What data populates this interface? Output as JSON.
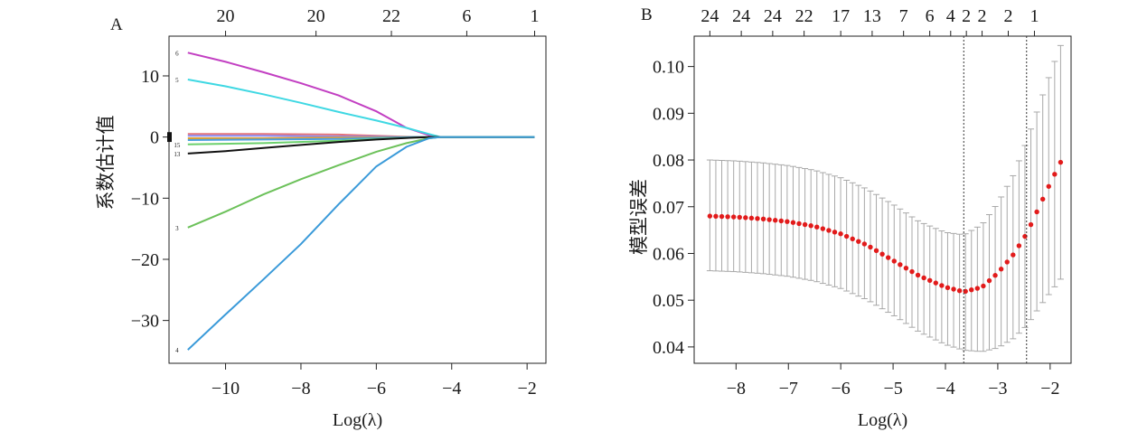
{
  "chart_data": [
    {
      "panel": "A",
      "type": "line",
      "xlabel": "Log(λ)",
      "ylabel": "系数估计值",
      "xlim": [
        -11.5,
        -1.5
      ],
      "ylim": [
        -37,
        16.5
      ],
      "xticks": [
        -10,
        -8,
        -6,
        -4,
        -2
      ],
      "xtick_labels": [
        "−10",
        "−8",
        "−6",
        "−4",
        "−2"
      ],
      "yticks": [
        10,
        0,
        -10,
        -20,
        -30
      ],
      "ytick_labels": [
        "10",
        "0",
        "−10",
        "−20",
        "−30"
      ],
      "top_axis": {
        "positions": [
          -10.0,
          -7.6,
          -5.6,
          -3.6,
          -1.8
        ],
        "labels": [
          "20",
          "20",
          "22",
          "6",
          "1"
        ]
      },
      "series": [
        {
          "color": "#c23fc2",
          "end_label": "6",
          "values": [
            [
              -11,
              13.8
            ],
            [
              -10,
              12.3
            ],
            [
              -9,
              10.6
            ],
            [
              -8,
              8.8
            ],
            [
              -7,
              6.8
            ],
            [
              -6,
              4.2
            ],
            [
              -5.2,
              1.5
            ],
            [
              -4.6,
              0.3
            ],
            [
              -4.3,
              0
            ],
            [
              -1.8,
              0
            ]
          ]
        },
        {
          "color": "#3fd8e3",
          "end_label": "5",
          "values": [
            [
              -11,
              9.4
            ],
            [
              -10,
              8.3
            ],
            [
              -9,
              7.0
            ],
            [
              -8,
              5.6
            ],
            [
              -7,
              4.1
            ],
            [
              -6,
              2.7
            ],
            [
              -5.2,
              1.5
            ],
            [
              -4.6,
              0.5
            ],
            [
              -4.3,
              0
            ],
            [
              -1.8,
              0
            ]
          ]
        },
        {
          "color": "#e3737a",
          "end_label": "",
          "values": [
            [
              -11,
              0.5
            ],
            [
              -9,
              0.5
            ],
            [
              -7,
              0.4
            ],
            [
              -6,
              0.2
            ],
            [
              -5,
              0
            ],
            [
              -1.8,
              0
            ]
          ]
        },
        {
          "color": "#8a8af0",
          "end_label": "",
          "values": [
            [
              -11,
              0.2
            ],
            [
              -9,
              0.2
            ],
            [
              -7,
              0.1
            ],
            [
              -5,
              0
            ],
            [
              -1.8,
              0
            ]
          ]
        },
        {
          "color": "#e0a030",
          "end_label": "",
          "values": [
            [
              -11,
              -0.2
            ],
            [
              -9,
              -0.2
            ],
            [
              -7,
              -0.1
            ],
            [
              -5,
              0
            ],
            [
              -1.8,
              0
            ]
          ]
        },
        {
          "color": "#4aa0e0",
          "end_label": "",
          "values": [
            [
              -11,
              -0.5
            ],
            [
              -9,
              -0.4
            ],
            [
              -7,
              -0.3
            ],
            [
              -5,
              0
            ],
            [
              -1.8,
              0
            ]
          ]
        },
        {
          "color": "#6cd06c",
          "end_label": "15",
          "values": [
            [
              -11,
              -1.2
            ],
            [
              -9,
              -1.0
            ],
            [
              -7,
              -0.6
            ],
            [
              -5.5,
              -0.2
            ],
            [
              -4.5,
              0
            ],
            [
              -1.8,
              0
            ]
          ]
        },
        {
          "color": "#111111",
          "end_label": "13",
          "values": [
            [
              -11,
              -2.7
            ],
            [
              -10,
              -2.3
            ],
            [
              -9,
              -1.8
            ],
            [
              -8,
              -1.3
            ],
            [
              -7,
              -0.8
            ],
            [
              -6,
              -0.4
            ],
            [
              -5,
              -0.1
            ],
            [
              -4.5,
              0
            ],
            [
              -1.8,
              0
            ]
          ]
        },
        {
          "color": "#6cc15a",
          "end_label": "3",
          "values": [
            [
              -11,
              -14.8
            ],
            [
              -10,
              -12.2
            ],
            [
              -9,
              -9.4
            ],
            [
              -8,
              -6.9
            ],
            [
              -7,
              -4.6
            ],
            [
              -6,
              -2.4
            ],
            [
              -5.2,
              -1.0
            ],
            [
              -4.6,
              -0.2
            ],
            [
              -4.3,
              0
            ],
            [
              -1.8,
              0
            ]
          ]
        },
        {
          "color": "#3a9ad9",
          "end_label": "4",
          "values": [
            [
              -11,
              -34.8
            ],
            [
              -10,
              -29.0
            ],
            [
              -9,
              -23.3
            ],
            [
              -8,
              -17.5
            ],
            [
              -7,
              -11.0
            ],
            [
              -6,
              -4.8
            ],
            [
              -5.2,
              -1.6
            ],
            [
              -4.6,
              -0.2
            ],
            [
              -4.3,
              0
            ],
            [
              -1.8,
              0
            ]
          ]
        }
      ]
    },
    {
      "panel": "B",
      "type": "scatter",
      "xlabel": "Log(λ)",
      "ylabel": "模型误差",
      "xlim": [
        -8.8,
        -1.6
      ],
      "ylim": [
        0.0365,
        0.1065
      ],
      "xticks": [
        -8,
        -7,
        -6,
        -5,
        -4,
        -3,
        -2
      ],
      "xtick_labels": [
        "−8",
        "−7",
        "−6",
        "−5",
        "−4",
        "−3",
        "−2"
      ],
      "yticks": [
        0.04,
        0.05,
        0.06,
        0.07,
        0.08,
        0.09,
        0.1
      ],
      "ytick_labels": [
        "0.04",
        "0.05",
        "0.06",
        "0.07",
        "0.08",
        "0.09",
        "0.10"
      ],
      "top_axis": {
        "positions": [
          -8.5,
          -7.9,
          -7.3,
          -6.7,
          -6.0,
          -5.4,
          -4.8,
          -4.3,
          -3.9,
          -3.6,
          -3.3,
          -2.8,
          -2.3
        ],
        "labels": [
          "24",
          "24",
          "24",
          "22",
          "17",
          "13",
          "7",
          "6",
          "4",
          "2",
          "2",
          "2",
          "1"
        ]
      },
      "vlines": [
        -3.65,
        -2.45
      ],
      "point_color": "#e21b1b",
      "curve": {
        "x": [
          -8.5,
          -8.0,
          -7.5,
          -7.0,
          -6.5,
          -6.0,
          -5.5,
          -5.0,
          -4.5,
          -4.0,
          -3.65,
          -3.3,
          -3.0,
          -2.7,
          -2.45,
          -2.2,
          -2.0,
          -1.8
        ],
        "y": [
          0.068,
          0.0678,
          0.0674,
          0.0668,
          0.0658,
          0.0642,
          0.0618,
          0.0585,
          0.0552,
          0.0528,
          0.0518,
          0.0528,
          0.0558,
          0.0598,
          0.0642,
          0.0702,
          0.075,
          0.0795
        ],
        "upper": [
          0.08,
          0.0798,
          0.0794,
          0.0788,
          0.0778,
          0.0762,
          0.0738,
          0.0705,
          0.0668,
          0.0645,
          0.064,
          0.0662,
          0.0708,
          0.0768,
          0.084,
          0.092,
          0.0985,
          0.1045
        ],
        "lower": [
          0.0563,
          0.0561,
          0.0557,
          0.0551,
          0.0541,
          0.0525,
          0.0501,
          0.0468,
          0.0432,
          0.0405,
          0.0393,
          0.039,
          0.0398,
          0.0418,
          0.0445,
          0.0486,
          0.0516,
          0.0545
        ]
      }
    }
  ]
}
